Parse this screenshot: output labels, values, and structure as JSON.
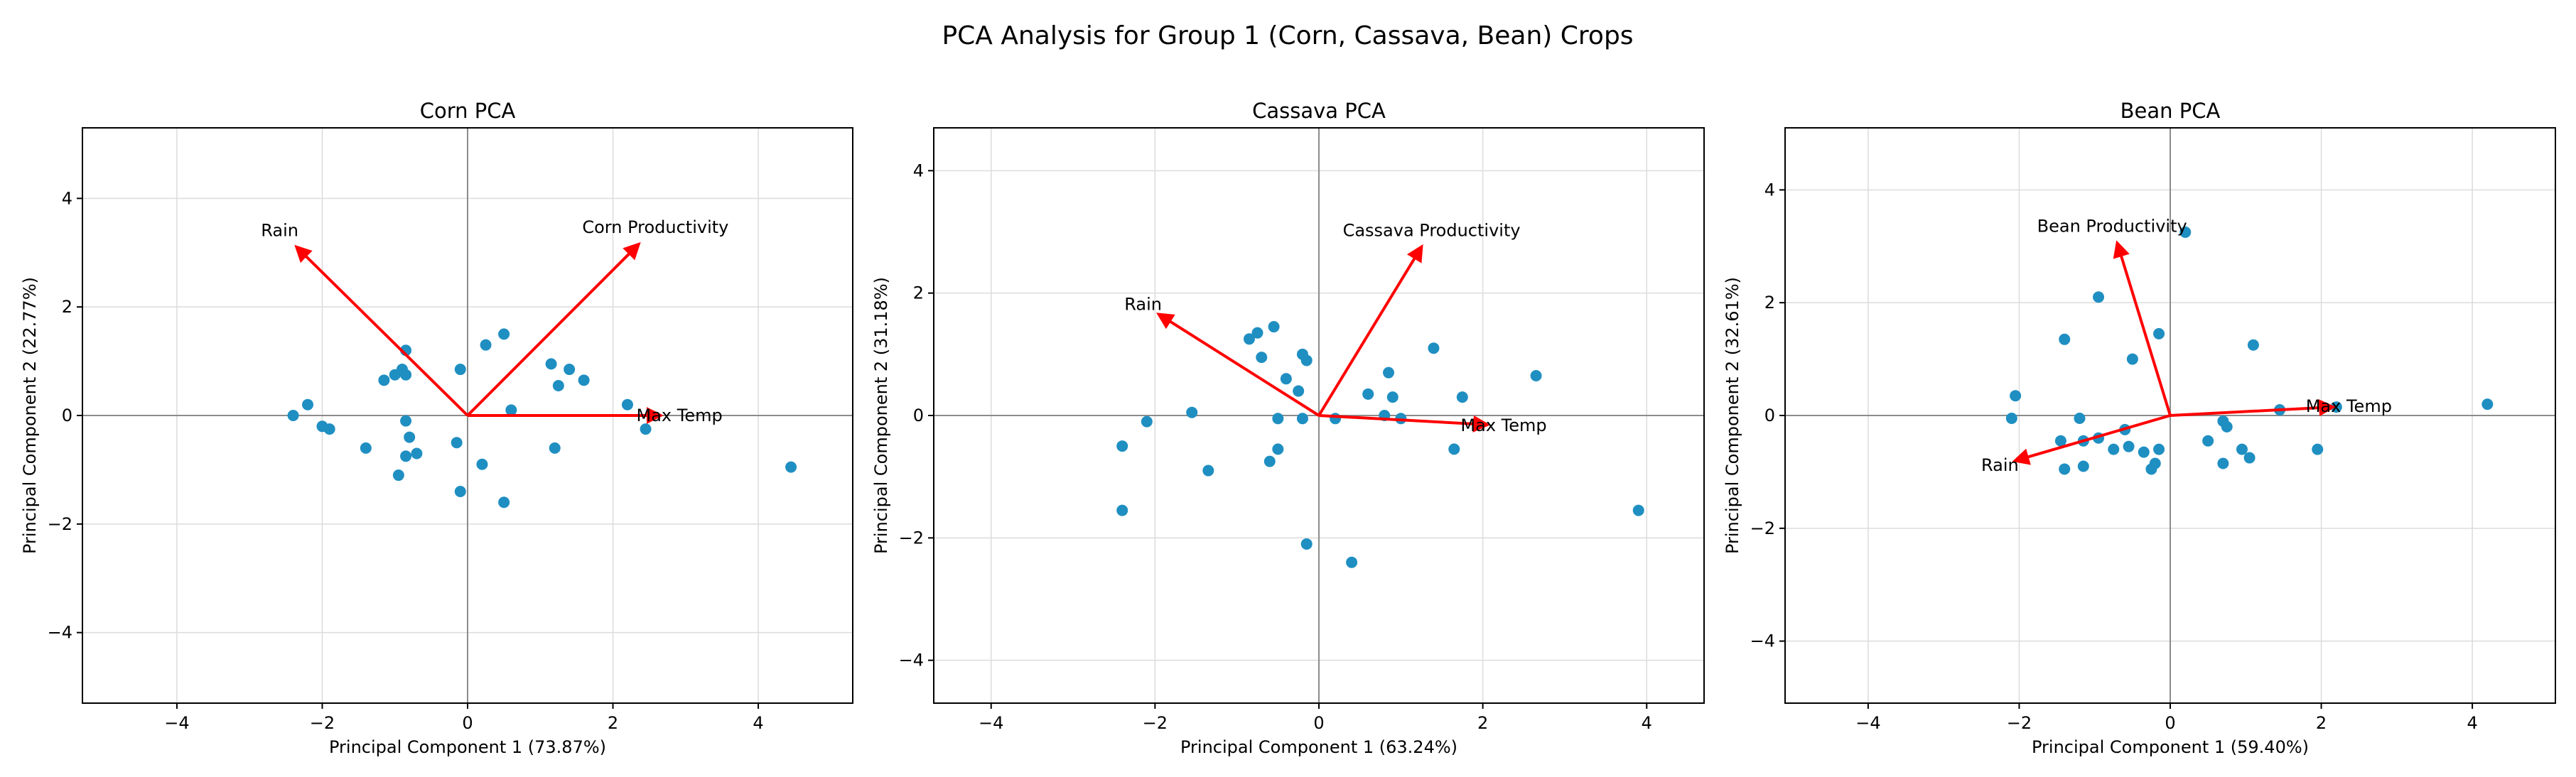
{
  "figure_title": "PCA Analysis for Group 1 (Corn, Cassava, Bean) Crops",
  "colors": {
    "points": "#1f8fc2",
    "arrows": "#ff0000",
    "grid": "#dcdcdc",
    "zero_lines": "#8c8c8c"
  },
  "chart_data": [
    {
      "type": "scatter",
      "title": "Corn PCA",
      "xlabel": "Principal Component 1 (73.87%)",
      "ylabel": "Principal Component 2 (22.77%)",
      "xlim": [
        -5.3,
        5.3
      ],
      "ylim": [
        -5.3,
        5.3
      ],
      "xticks": [
        -4,
        -2,
        0,
        2,
        4
      ],
      "yticks": [
        -4,
        -2,
        0,
        2,
        4
      ],
      "grid": true,
      "points": [
        [
          -2.4,
          0.0
        ],
        [
          -2.2,
          0.2
        ],
        [
          -2.0,
          -0.2
        ],
        [
          -1.9,
          -0.25
        ],
        [
          -1.4,
          -0.6
        ],
        [
          -1.15,
          0.65
        ],
        [
          -1.0,
          0.75
        ],
        [
          -0.95,
          -1.1
        ],
        [
          -0.9,
          0.85
        ],
        [
          -0.85,
          0.75
        ],
        [
          -0.85,
          1.2
        ],
        [
          -0.85,
          -0.1
        ],
        [
          -0.85,
          -0.75
        ],
        [
          -0.8,
          -0.4
        ],
        [
          -0.7,
          -0.7
        ],
        [
          -0.15,
          -0.5
        ],
        [
          -0.1,
          0.85
        ],
        [
          -0.1,
          -1.4
        ],
        [
          0.2,
          -0.9
        ],
        [
          0.25,
          1.3
        ],
        [
          0.5,
          1.5
        ],
        [
          0.5,
          -1.6
        ],
        [
          0.6,
          0.1
        ],
        [
          1.15,
          0.95
        ],
        [
          1.2,
          -0.6
        ],
        [
          1.25,
          0.55
        ],
        [
          1.4,
          0.85
        ],
        [
          1.6,
          0.65
        ],
        [
          2.2,
          0.2
        ],
        [
          2.45,
          -0.25
        ],
        [
          4.45,
          -0.95
        ]
      ],
      "loadings": [
        {
          "label": "Max Temp",
          "x": 2.65,
          "y": 0.0
        },
        {
          "label": "Rain",
          "x": -2.35,
          "y": 3.1
        },
        {
          "label": "Corn Productivity",
          "x": 2.35,
          "y": 3.15
        }
      ]
    },
    {
      "type": "scatter",
      "title": "Cassava PCA",
      "xlabel": "Principal Component 1 (63.24%)",
      "ylabel": "Principal Component 2 (31.18%)",
      "xlim": [
        -4.7,
        4.7
      ],
      "ylim": [
        -4.7,
        4.7
      ],
      "xticks": [
        -4,
        -2,
        0,
        2,
        4
      ],
      "yticks": [
        -4,
        -2,
        0,
        2,
        4
      ],
      "grid": true,
      "points": [
        [
          -2.4,
          -0.5
        ],
        [
          -2.4,
          -1.55
        ],
        [
          -2.1,
          -0.1
        ],
        [
          -1.55,
          0.05
        ],
        [
          -1.35,
          -0.9
        ],
        [
          -0.85,
          1.25
        ],
        [
          -0.75,
          1.35
        ],
        [
          -0.7,
          0.95
        ],
        [
          -0.6,
          -0.75
        ],
        [
          -0.55,
          1.45
        ],
        [
          -0.5,
          -0.55
        ],
        [
          -0.5,
          -0.05
        ],
        [
          -0.4,
          0.6
        ],
        [
          -0.25,
          0.4
        ],
        [
          -0.2,
          1.0
        ],
        [
          -0.2,
          -0.05
        ],
        [
          -0.15,
          0.9
        ],
        [
          -0.15,
          -2.1
        ],
        [
          0.2,
          -0.05
        ],
        [
          0.4,
          -2.4
        ],
        [
          0.6,
          0.35
        ],
        [
          0.8,
          0.0
        ],
        [
          0.85,
          0.7
        ],
        [
          0.9,
          0.3
        ],
        [
          1.0,
          -0.05
        ],
        [
          1.4,
          1.1
        ],
        [
          1.65,
          -0.55
        ],
        [
          1.75,
          0.3
        ],
        [
          2.65,
          0.65
        ],
        [
          3.9,
          -1.55
        ]
      ],
      "loadings": [
        {
          "label": "Max Temp",
          "x": 2.05,
          "y": -0.15
        },
        {
          "label": "Rain",
          "x": -1.95,
          "y": 1.65
        },
        {
          "label": "Cassava Productivity",
          "x": 1.25,
          "y": 2.75
        }
      ]
    },
    {
      "type": "scatter",
      "title": "Bean PCA",
      "xlabel": "Principal Component 1 (59.40%)",
      "ylabel": "Principal Component 2 (32.61%)",
      "xlim": [
        -5.1,
        5.1
      ],
      "ylim": [
        -5.1,
        5.1
      ],
      "xticks": [
        -4,
        -2,
        0,
        2,
        4
      ],
      "yticks": [
        -4,
        -2,
        0,
        2,
        4
      ],
      "grid": true,
      "points": [
        [
          -2.1,
          -0.05
        ],
        [
          -2.05,
          0.35
        ],
        [
          -1.45,
          -0.45
        ],
        [
          -1.4,
          -0.95
        ],
        [
          -1.4,
          1.35
        ],
        [
          -1.2,
          -0.05
        ],
        [
          -1.15,
          -0.45
        ],
        [
          -1.15,
          -0.9
        ],
        [
          -0.95,
          -0.4
        ],
        [
          -0.95,
          2.1
        ],
        [
          -0.75,
          -0.6
        ],
        [
          -0.6,
          -0.25
        ],
        [
          -0.55,
          -0.55
        ],
        [
          -0.5,
          1.0
        ],
        [
          -0.35,
          -0.65
        ],
        [
          -0.25,
          -0.95
        ],
        [
          -0.2,
          -0.85
        ],
        [
          -0.15,
          -0.6
        ],
        [
          -0.15,
          1.45
        ],
        [
          0.2,
          3.25
        ],
        [
          0.5,
          -0.45
        ],
        [
          0.7,
          -0.1
        ],
        [
          0.7,
          -0.85
        ],
        [
          0.75,
          -0.2
        ],
        [
          0.95,
          -0.6
        ],
        [
          1.05,
          -0.75
        ],
        [
          1.1,
          1.25
        ],
        [
          1.45,
          0.1
        ],
        [
          1.95,
          -0.6
        ],
        [
          2.2,
          0.15
        ],
        [
          4.2,
          0.2
        ]
      ],
      "loadings": [
        {
          "label": "Max Temp",
          "x": 2.15,
          "y": 0.15
        },
        {
          "label": "Rain",
          "x": -2.05,
          "y": -0.8
        },
        {
          "label": "Bean Productivity",
          "x": -0.7,
          "y": 3.05
        }
      ]
    }
  ]
}
